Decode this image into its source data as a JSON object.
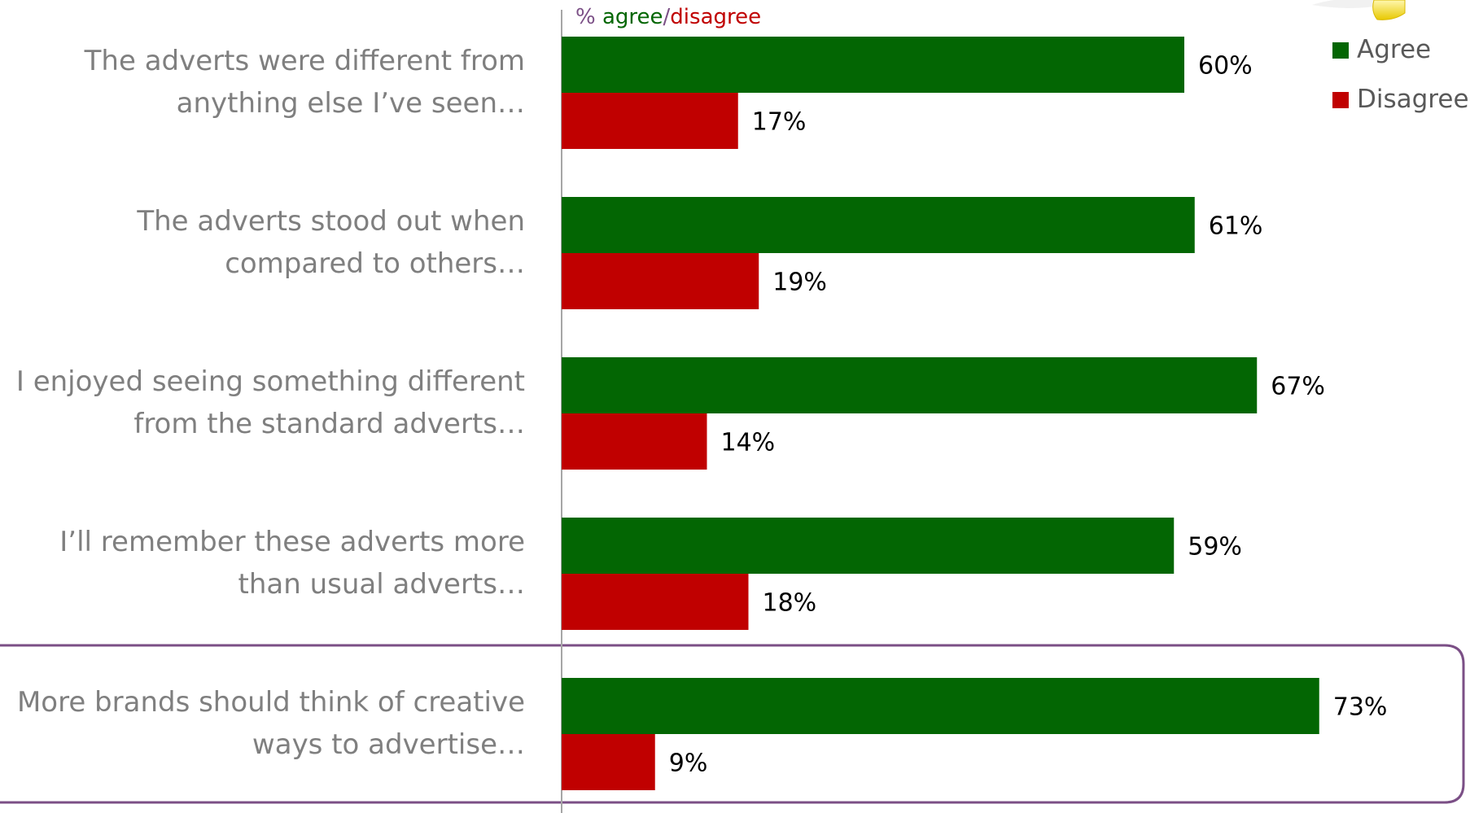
{
  "chart_data": {
    "type": "bar",
    "orientation": "horizontal",
    "subtitle": {
      "prefix": "% ",
      "agree_word": "agree",
      "separator": "/",
      "disagree_word": "disagree"
    },
    "categories": [
      [
        "The adverts were different from",
        "anything else I’ve seen…"
      ],
      [
        "The adverts stood out when",
        "compared to others…"
      ],
      [
        "I enjoyed seeing something different",
        "from the standard adverts…"
      ],
      [
        "I’ll remember these adverts more",
        "than usual adverts…"
      ],
      [
        "More brands should think of creative",
        "ways to advertise…"
      ]
    ],
    "series": [
      {
        "name": "Agree",
        "color": "#036603",
        "values": [
          60,
          61,
          67,
          59,
          73
        ]
      },
      {
        "name": "Disagree",
        "color": "#c00000",
        "values": [
          17,
          19,
          14,
          18,
          9
        ]
      }
    ],
    "value_suffix": "%",
    "xlim": [
      0,
      100
    ],
    "grid": false,
    "legend_position": "top-right",
    "highlight_category_index": 4,
    "highlight_color": "#7b4f86",
    "subtitle_prefix_color": "#7b4f86",
    "axis_line_color": "#a6a6a6",
    "category_label_color": "#7f7f7f"
  }
}
